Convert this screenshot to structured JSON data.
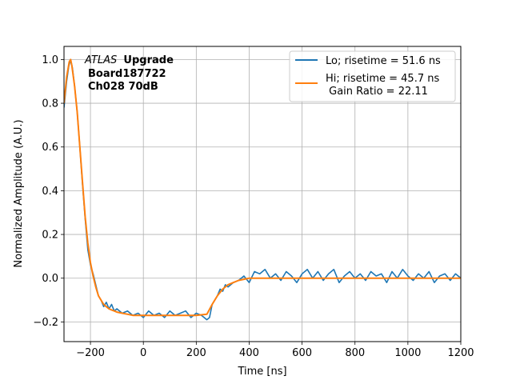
{
  "chart_data": {
    "type": "line",
    "xlabel": "Time [ns]",
    "ylabel": "Normalized Amplitude (A.U.)",
    "xlim": [
      -300,
      1200
    ],
    "ylim": [
      -0.29,
      1.06
    ],
    "xticks": [
      -200,
      0,
      200,
      400,
      600,
      800,
      1000,
      1200
    ],
    "xtick_labels": [
      "−200",
      "0",
      "200",
      "400",
      "600",
      "800",
      "1000",
      "1200"
    ],
    "yticks": [
      -0.2,
      0.0,
      0.2,
      0.4,
      0.6,
      0.8,
      1.0
    ],
    "ytick_labels": [
      "−0.2",
      "0.0",
      "0.2",
      "0.4",
      "0.6",
      "0.8",
      "1.0"
    ],
    "grid": true,
    "legend_position": "top-right",
    "annotation": {
      "italic": "ATLAS",
      "bold": "Upgrade",
      "line2": "Board187722",
      "line3": "Ch028 70dB"
    },
    "series": [
      {
        "name": "Lo; risetime = 51.6 ns",
        "color": "#1f77b4",
        "x": [
          -300,
          -290,
          -282,
          -275,
          -268,
          -260,
          -250,
          -240,
          -230,
          -220,
          -210,
          -200,
          -190,
          -180,
          -170,
          -160,
          -150,
          -140,
          -130,
          -120,
          -110,
          -100,
          -80,
          -60,
          -40,
          -20,
          0,
          20,
          40,
          60,
          80,
          100,
          120,
          140,
          160,
          180,
          200,
          220,
          240,
          250,
          260,
          270,
          280,
          290,
          300,
          310,
          320,
          340,
          360,
          380,
          400,
          420,
          440,
          460,
          480,
          500,
          520,
          540,
          560,
          580,
          600,
          620,
          640,
          660,
          680,
          700,
          720,
          740,
          760,
          780,
          800,
          820,
          840,
          860,
          880,
          900,
          920,
          940,
          960,
          980,
          1000,
          1020,
          1040,
          1060,
          1080,
          1100,
          1120,
          1140,
          1160,
          1180,
          1200
        ],
        "y": [
          0.78,
          0.9,
          0.97,
          1.0,
          0.96,
          0.88,
          0.76,
          0.6,
          0.43,
          0.27,
          0.13,
          0.06,
          0.02,
          -0.03,
          -0.08,
          -0.1,
          -0.13,
          -0.11,
          -0.14,
          -0.12,
          -0.15,
          -0.14,
          -0.16,
          -0.15,
          -0.17,
          -0.16,
          -0.18,
          -0.15,
          -0.17,
          -0.16,
          -0.18,
          -0.15,
          -0.17,
          -0.16,
          -0.15,
          -0.18,
          -0.16,
          -0.17,
          -0.19,
          -0.18,
          -0.12,
          -0.1,
          -0.08,
          -0.05,
          -0.06,
          -0.03,
          -0.04,
          -0.02,
          -0.01,
          0.01,
          -0.02,
          0.03,
          0.02,
          0.04,
          0.0,
          0.02,
          -0.01,
          0.03,
          0.01,
          -0.02,
          0.02,
          0.04,
          0.0,
          0.03,
          -0.01,
          0.02,
          0.04,
          -0.02,
          0.01,
          0.03,
          0.0,
          0.02,
          -0.01,
          0.03,
          0.01,
          0.02,
          -0.02,
          0.03,
          0.0,
          0.04,
          0.01,
          -0.01,
          0.02,
          0.0,
          0.03,
          -0.02,
          0.01,
          0.02,
          -0.01,
          0.02,
          0.0
        ]
      },
      {
        "name": "Hi; risetime = 45.7 ns\n Gain Ratio = 22.11",
        "color": "#ff7f0e",
        "x": [
          -300,
          -290,
          -280,
          -275,
          -270,
          -260,
          -250,
          -240,
          -230,
          -220,
          -210,
          -200,
          -190,
          -180,
          -170,
          -160,
          -150,
          -140,
          -130,
          -120,
          -110,
          -100,
          -80,
          -60,
          -40,
          -20,
          0,
          50,
          100,
          150,
          200,
          240,
          260,
          280,
          300,
          320,
          340,
          360,
          380,
          400,
          450,
          500,
          600,
          700,
          800,
          900,
          1000,
          1100,
          1200
        ],
        "y": [
          0.8,
          0.92,
          0.99,
          1.0,
          0.97,
          0.88,
          0.76,
          0.6,
          0.44,
          0.28,
          0.16,
          0.07,
          0.01,
          -0.04,
          -0.08,
          -0.1,
          -0.12,
          -0.13,
          -0.14,
          -0.145,
          -0.15,
          -0.155,
          -0.16,
          -0.165,
          -0.17,
          -0.17,
          -0.17,
          -0.17,
          -0.17,
          -0.17,
          -0.17,
          -0.165,
          -0.12,
          -0.08,
          -0.05,
          -0.03,
          -0.02,
          -0.01,
          -0.005,
          0.0,
          0.0,
          0.0,
          0.0,
          0.0,
          0.0,
          0.0,
          0.0,
          0.0,
          0.0
        ]
      }
    ]
  }
}
